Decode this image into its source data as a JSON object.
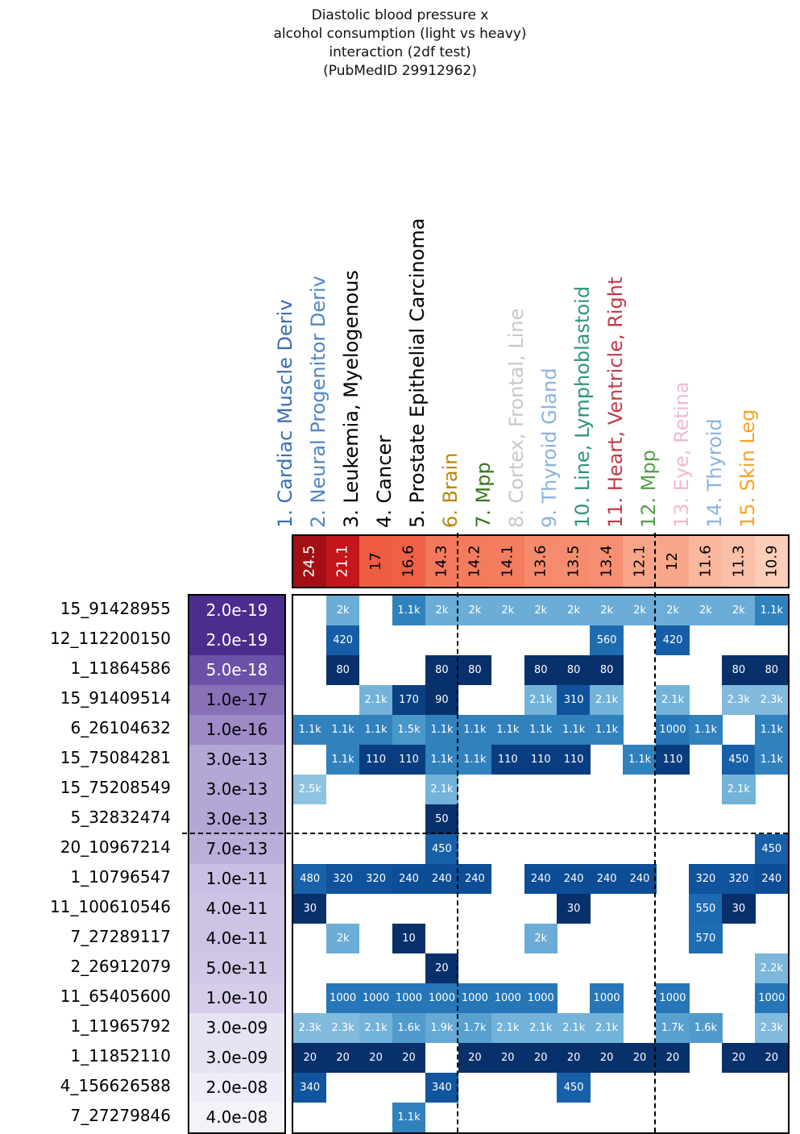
{
  "title": {
    "lines": [
      "Diastolic blood pressure x",
      "alcohol consumption (light vs heavy)",
      "interaction (2df test)",
      "(PubMedID 29912962)"
    ]
  },
  "chart_data": {
    "type": "heatmap",
    "title": "Diastolic blood pressure x alcohol consumption (light vs heavy) interaction (2df test) (PubMedID 29912962)",
    "columns": [
      {
        "label": "1. Cardiac Muscle Deriv",
        "color": "#3b6cb4",
        "score": "24.5",
        "score_bg": "#a21016",
        "score_text": "#ffffff"
      },
      {
        "label": "2. Neural Progenitor Deriv",
        "color": "#4e86c6",
        "score": "21.1",
        "score_bg": "#c4161c",
        "score_text": "#ffffff"
      },
      {
        "label": "3. Leukemia, Myelogenous",
        "color": "#000000",
        "score": "17",
        "score_bg": "#ee5c42",
        "score_text": "#000000"
      },
      {
        "label": "4. Cancer",
        "color": "#000000",
        "score": "16.6",
        "score_bg": "#ef6146",
        "score_text": "#000000"
      },
      {
        "label": "5. Prostate Epithelial Carcinoma",
        "color": "#000000",
        "score": "14.3",
        "score_bg": "#f4795c",
        "score_text": "#000000"
      },
      {
        "label": "6. Brain",
        "color": "#b8860b",
        "score": "14.2",
        "score_bg": "#f47b5e",
        "score_text": "#000000"
      },
      {
        "label": "7. Mpp",
        "color": "#38761d",
        "score": "14.1",
        "score_bg": "#f47d60",
        "score_text": "#000000"
      },
      {
        "label": "8. Cortex, Frontal, Line",
        "color": "#c8c8c8",
        "score": "13.6",
        "score_bg": "#f68a6c",
        "score_text": "#000000"
      },
      {
        "label": "9. Thyroid Gland",
        "color": "#8ab2e0",
        "score": "13.5",
        "score_bg": "#f68c6f",
        "score_text": "#000000"
      },
      {
        "label": "10. Line, Lymphoblastoid",
        "color": "#2e9678",
        "score": "13.4",
        "score_bg": "#f68e71",
        "score_text": "#000000"
      },
      {
        "label": "11. Heart, Ventricle, Right",
        "color": "#c2394b",
        "score": "12.1",
        "score_bg": "#f8a488",
        "score_text": "#000000"
      },
      {
        "label": "12. Mpp",
        "color": "#55a04a",
        "score": "12",
        "score_bg": "#f8a68a",
        "score_text": "#000000"
      },
      {
        "label": "13. Eye, Retina",
        "color": "#f2bac8",
        "score": "11.6",
        "score_bg": "#fab79d",
        "score_text": "#000000"
      },
      {
        "label": "14. Thyroid",
        "color": "#8ab2e0",
        "score": "11.3",
        "score_bg": "#fbc0a8",
        "score_text": "#000000"
      },
      {
        "label": "15. Skin Leg",
        "color": "#f5a425",
        "score": "10.9",
        "score_bg": "#fccdb9",
        "score_text": "#000000"
      }
    ],
    "value_colors": {
      "10": "#08306b",
      "20": "#08306b",
      "30": "#08306b",
      "50": "#08306b",
      "80": "#08306b",
      "90": "#08306b",
      "110": "#093d7f",
      "170": "#0a4183",
      "240": "#0d4d96",
      "310": "#0f539c",
      "320": "#0f539c",
      "340": "#10559e",
      "420": "#155da6",
      "450": "#1760a8",
      "480": "#1862aa",
      "550": "#1e6ab0",
      "560": "#1f6bb0",
      "570": "#1f6cb1",
      "1000": "#2676b8",
      "1.1k": "#3181bd",
      "1.5k": "#4a97ca",
      "1.6k": "#519bcc",
      "1.7k": "#57a0cf",
      "1.9k": "#65a9d4",
      "2k": "#6badd6",
      "2.1k": "#73b3d9",
      "2.2k": "#7bb7db",
      "2.3k": "#81badd",
      "2.5k": "#90c3e1"
    },
    "rows": [
      {
        "label": "15_91428955",
        "pvalue": "2.0e-19",
        "p_bg": "#4c2c8c",
        "p_text": "#ffffff",
        "cells": {
          "2": "2k",
          "4": "1.1k",
          "5": "2k",
          "6": "2k",
          "7": "2k",
          "8": "2k",
          "9": "2k",
          "10": "2k",
          "11": "2k",
          "12": "2k",
          "13": "2k",
          "14": "2k",
          "15": "1.1k"
        }
      },
      {
        "label": "12_112200150",
        "pvalue": "2.0e-19",
        "p_bg": "#4c2c8c",
        "p_text": "#ffffff",
        "cells": {
          "2": "420",
          "10": "560",
          "12": "420"
        }
      },
      {
        "label": "1_11864586",
        "pvalue": "5.0e-18",
        "p_bg": "#6b51a7",
        "p_text": "#ffffff",
        "cells": {
          "2": "80",
          "5": "80",
          "6": "80",
          "8": "80",
          "9": "80",
          "10": "80",
          "14": "80",
          "15": "80"
        }
      },
      {
        "label": "15_91409514",
        "pvalue": "1.0e-17",
        "p_bg": "#8971b8",
        "p_text": "#000000",
        "cells": {
          "3": "2.1k",
          "4": "170",
          "5": "90",
          "8": "2.1k",
          "9": "310",
          "10": "2.1k",
          "12": "2.1k",
          "14": "2.3k",
          "15": "2.3k"
        }
      },
      {
        "label": "6_26104632",
        "pvalue": "1.0e-16",
        "p_bg": "#9e8ac6",
        "p_text": "#000000",
        "cells": {
          "1": "1.1k",
          "2": "1.1k",
          "3": "1.1k",
          "4": "1.5k",
          "5": "1.1k",
          "6": "1.1k",
          "7": "1.1k",
          "8": "1.1k",
          "9": "1.1k",
          "10": "1.1k",
          "12": "1000",
          "13": "1.1k",
          "15": "1.1k"
        }
      },
      {
        "label": "15_75084281",
        "pvalue": "3.0e-13",
        "p_bg": "#b4a6d5",
        "p_text": "#000000",
        "cells": {
          "2": "1.1k",
          "3": "110",
          "4": "110",
          "5": "1.1k",
          "6": "1.1k",
          "7": "110",
          "8": "110",
          "9": "110",
          "11": "1.1k",
          "12": "110",
          "14": "450",
          "15": "1.1k"
        }
      },
      {
        "label": "15_75208549",
        "pvalue": "3.0e-13",
        "p_bg": "#b4a6d5",
        "p_text": "#000000",
        "cells": {
          "1": "2.5k",
          "5": "2.1k",
          "14": "2.1k"
        }
      },
      {
        "label": "5_32832474",
        "pvalue": "3.0e-13",
        "p_bg": "#b4a6d5",
        "p_text": "#000000",
        "cells": {
          "5": "50"
        }
      },
      {
        "label": "20_10967214",
        "pvalue": "7.0e-13",
        "p_bg": "#bcaeda",
        "p_text": "#000000",
        "cells": {
          "5": "450",
          "15": "450"
        }
      },
      {
        "label": "1_10796547",
        "pvalue": "1.0e-11",
        "p_bg": "#cabfe3",
        "p_text": "#000000",
        "cells": {
          "1": "480",
          "2": "320",
          "3": "320",
          "4": "240",
          "5": "240",
          "6": "240",
          "8": "240",
          "9": "240",
          "10": "240",
          "11": "240",
          "13": "320",
          "14": "320",
          "15": "240"
        }
      },
      {
        "label": "11_100610546",
        "pvalue": "4.0e-11",
        "p_bg": "#cdc3e5",
        "p_text": "#000000",
        "cells": {
          "1": "30",
          "9": "30",
          "13": "550",
          "14": "30"
        }
      },
      {
        "label": "7_27289117",
        "pvalue": "4.0e-11",
        "p_bg": "#cdc3e5",
        "p_text": "#000000",
        "cells": {
          "2": "2k",
          "4": "10",
          "8": "2k",
          "13": "570"
        }
      },
      {
        "label": "2_26912079",
        "pvalue": "5.0e-11",
        "p_bg": "#d0c7e7",
        "p_text": "#000000",
        "cells": {
          "5": "20",
          "15": "2.2k"
        }
      },
      {
        "label": "11_65405600",
        "pvalue": "1.0e-10",
        "p_bg": "#d5cdea",
        "p_text": "#000000",
        "cells": {
          "2": "1000",
          "3": "1000",
          "4": "1000",
          "5": "1000",
          "6": "1000",
          "7": "1000",
          "8": "1000",
          "10": "1000",
          "12": "1000",
          "15": "1000"
        }
      },
      {
        "label": "1_11965792",
        "pvalue": "3.0e-09",
        "p_bg": "#e7e3f3",
        "p_text": "#000000",
        "cells": {
          "1": "2.3k",
          "2": "2.3k",
          "3": "2.1k",
          "4": "1.6k",
          "5": "1.9k",
          "6": "1.7k",
          "7": "2.1k",
          "8": "2.1k",
          "9": "2.1k",
          "10": "2.1k",
          "12": "1.7k",
          "13": "1.6k",
          "15": "2.3k"
        }
      },
      {
        "label": "1_11852110",
        "pvalue": "3.0e-09",
        "p_bg": "#e7e3f3",
        "p_text": "#000000",
        "cells": {
          "1": "20",
          "2": "20",
          "3": "20",
          "4": "20",
          "6": "20",
          "7": "20",
          "8": "20",
          "9": "20",
          "10": "20",
          "11": "20",
          "12": "20",
          "14": "20",
          "15": "20"
        }
      },
      {
        "label": "4_156626588",
        "pvalue": "2.0e-08",
        "p_bg": "#efedf8",
        "p_text": "#000000",
        "cells": {
          "1": "340",
          "5": "340",
          "9": "450"
        }
      },
      {
        "label": "7_27279846",
        "pvalue": "4.0e-08",
        "p_bg": "#f5f3fa",
        "p_text": "#000000",
        "cells": {
          "4": "1.1k"
        }
      }
    ],
    "separators": {
      "vertical_after_columns": [
        5,
        11
      ],
      "horizontal_after_rows": [
        8
      ]
    }
  }
}
